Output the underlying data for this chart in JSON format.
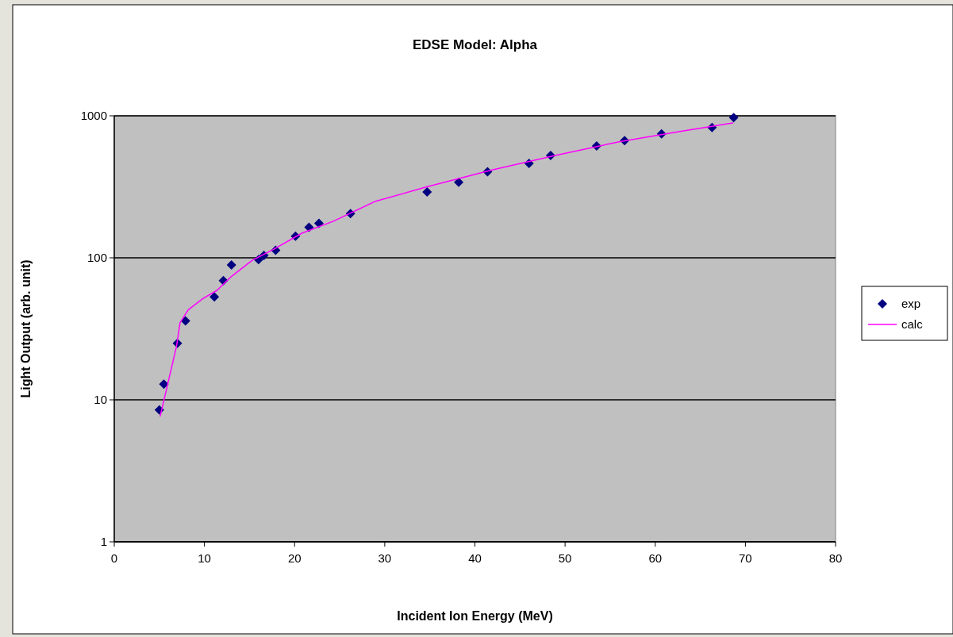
{
  "chart_data": {
    "type": "scatter",
    "title": "EDSE Model: Alpha",
    "xlabel": "Incident Ion Energy (MeV)",
    "ylabel": "Light Output (arb. unit)",
    "xlim": [
      0,
      80
    ],
    "xticks": [
      0,
      10,
      20,
      30,
      40,
      50,
      60,
      70,
      80
    ],
    "ylim": [
      1,
      1000
    ],
    "yticks": [
      1,
      10,
      100,
      1000
    ],
    "log": "y",
    "grid": "y",
    "legend": "right",
    "series": [
      {
        "name": "exp",
        "marker": "diamond",
        "color": "#000080",
        "x": [
          5.0,
          5.5,
          7.0,
          7.9,
          11.1,
          12.1,
          13.0,
          16.0,
          16.6,
          17.9,
          20.1,
          21.6,
          22.7,
          26.2,
          34.7,
          38.2,
          41.4,
          46.0,
          48.4,
          53.5,
          56.6,
          60.7,
          66.3,
          68.7
        ],
        "values": [
          8.5,
          12.9,
          25,
          36,
          53,
          69,
          89,
          97,
          104,
          113,
          142,
          164,
          175,
          205,
          291,
          340,
          404,
          462,
          526,
          613,
          669,
          746,
          827,
          970
        ]
      },
      {
        "name": "calc",
        "type": "line",
        "marker": "none",
        "line_style": "solid",
        "color": "#ff00ff",
        "x": [
          5.1,
          6.9,
          7.3,
          8.2,
          9.8,
          11.4,
          12.9,
          15.3,
          17.7,
          20.8,
          24.3,
          28.9,
          34.5,
          41.9,
          48.9,
          56.0,
          63.0,
          68.6
        ],
        "values": [
          7.7,
          23.7,
          35,
          43,
          51.5,
          59,
          73,
          96,
          115,
          149,
          181,
          249,
          314,
          416,
          526,
          657,
          780,
          891
        ]
      }
    ]
  }
}
